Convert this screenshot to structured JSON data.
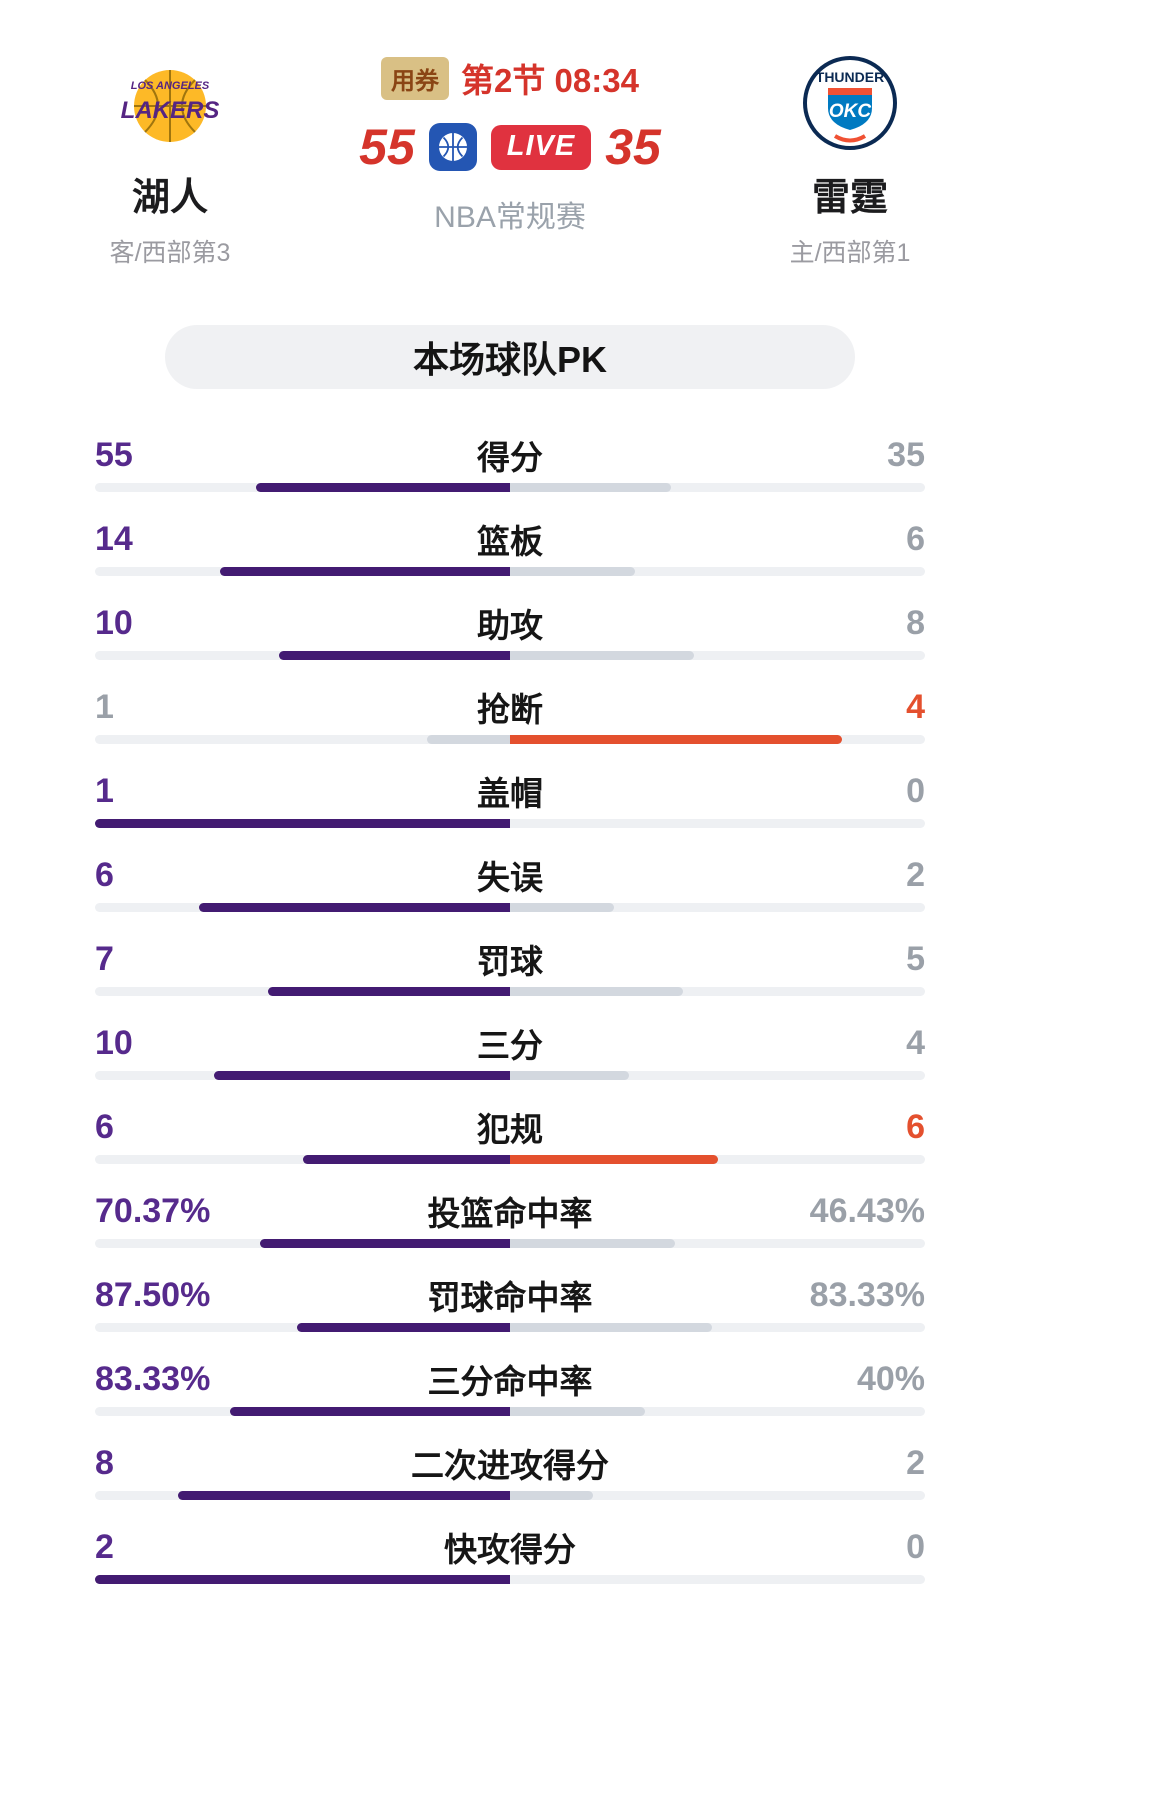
{
  "header": {
    "left_team": {
      "name": "湖人",
      "sub": "客/西部第3",
      "logo": "lakers"
    },
    "right_team": {
      "name": "雷霆",
      "sub": "主/西部第1",
      "logo": "okc-thunder"
    },
    "coupon_badge": "用券",
    "period": "第2节 08:34",
    "left_score": "55",
    "right_score": "35",
    "live_label": "LIVE",
    "league_label": "NBA常规赛"
  },
  "section_title": "本场球队PK",
  "colors": {
    "purple_text": "#562a8c",
    "purple_bar": "#431b72",
    "orange": "#e4502e",
    "score_red": "#d5342b",
    "gray_value": "#9aa0a8",
    "bar_track": "#eef0f3",
    "bar_neutral": "#d3d8df",
    "live_red": "#e0323f",
    "coupon_bg": "#d9c085"
  },
  "chart_data": {
    "type": "bar",
    "title": "本场球队PK",
    "left_team": "湖人",
    "right_team": "雷霆",
    "legend_position": "none",
    "rows": [
      {
        "label": "得分",
        "left": "55",
        "right": "35",
        "left_val": 55,
        "right_val": 35
      },
      {
        "label": "篮板",
        "left": "14",
        "right": "6",
        "left_val": 14,
        "right_val": 6
      },
      {
        "label": "助攻",
        "left": "10",
        "right": "8",
        "left_val": 10,
        "right_val": 8
      },
      {
        "label": "抢断",
        "left": "1",
        "right": "4",
        "left_val": 1,
        "right_val": 4
      },
      {
        "label": "盖帽",
        "left": "1",
        "right": "0",
        "left_val": 1,
        "right_val": 0
      },
      {
        "label": "失误",
        "left": "6",
        "right": "2",
        "left_val": 6,
        "right_val": 2
      },
      {
        "label": "罚球",
        "left": "7",
        "right": "5",
        "left_val": 7,
        "right_val": 5
      },
      {
        "label": "三分",
        "left": "10",
        "right": "4",
        "left_val": 10,
        "right_val": 4
      },
      {
        "label": "犯规",
        "left": "6",
        "right": "6",
        "left_val": 6,
        "right_val": 6
      },
      {
        "label": "投篮命中率",
        "left": "70.37%",
        "right": "46.43%",
        "left_val": 70.37,
        "right_val": 46.43
      },
      {
        "label": "罚球命中率",
        "left": "87.50%",
        "right": "83.33%",
        "left_val": 87.5,
        "right_val": 83.33
      },
      {
        "label": "三分命中率",
        "left": "83.33%",
        "right": "40%",
        "left_val": 83.33,
        "right_val": 40
      },
      {
        "label": "二次进攻得分",
        "left": "8",
        "right": "2",
        "left_val": 8,
        "right_val": 2
      },
      {
        "label": "快攻得分",
        "left": "2",
        "right": "0",
        "left_val": 2,
        "right_val": 0
      }
    ]
  }
}
